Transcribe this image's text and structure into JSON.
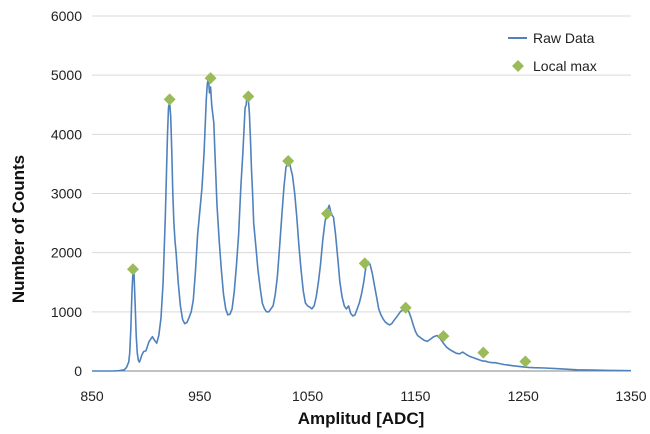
{
  "chart_data": {
    "type": "line",
    "title": "",
    "xlabel": "Amplitud [ADC]",
    "ylabel": "Number of Counts",
    "xlim": [
      850,
      1350
    ],
    "ylim": [
      0,
      6000
    ],
    "x_ticks": [
      850,
      950,
      1050,
      1150,
      1250,
      1350
    ],
    "x_tick_labels": [
      "850",
      "950",
      "1050",
      "1150",
      "1250",
      "1350"
    ],
    "y_ticks": [
      0,
      1000,
      2000,
      3000,
      4000,
      5000,
      6000
    ],
    "y_tick_labels": [
      "0",
      "1000",
      "2000",
      "3000",
      "4000",
      "5000",
      "6000"
    ],
    "grid": "horizontal",
    "legend": {
      "placement": "top-right",
      "entries": [
        {
          "name": "Raw Data",
          "marker": "line"
        },
        {
          "name": "Local max",
          "marker": "diamond"
        }
      ]
    },
    "colors": {
      "raw_data": "#4F81BD",
      "local_max": "#9BBB59",
      "grid": "#d9d9d9",
      "axis": "#868686"
    },
    "series": [
      {
        "name": "Raw Data",
        "style": "line",
        "x": [
          850,
          870,
          875,
          880,
          882,
          884,
          885,
          886,
          887,
          888,
          889,
          890,
          891,
          892,
          893,
          894,
          895,
          896,
          897,
          898,
          900,
          903,
          906,
          908,
          910,
          912,
          914,
          916,
          918,
          920,
          921,
          922,
          923,
          924,
          925,
          926,
          927,
          928,
          930,
          932,
          934,
          936,
          938,
          940,
          942,
          944,
          946,
          948,
          950,
          952,
          954,
          956,
          957,
          958,
          959,
          960,
          961,
          962,
          963,
          964,
          966,
          968,
          970,
          972,
          974,
          976,
          978,
          980,
          982,
          984,
          986,
          988,
          990,
          992,
          993,
          994,
          995,
          996,
          997,
          998,
          999,
          1000,
          1002,
          1004,
          1006,
          1008,
          1010,
          1012,
          1014,
          1016,
          1018,
          1020,
          1022,
          1024,
          1026,
          1028,
          1030,
          1032,
          1033,
          1034,
          1036,
          1038,
          1040,
          1042,
          1044,
          1046,
          1048,
          1050,
          1052,
          1054,
          1056,
          1058,
          1060,
          1062,
          1064,
          1066,
          1068,
          1070,
          1072,
          1074,
          1076,
          1078,
          1080,
          1082,
          1084,
          1086,
          1088,
          1090,
          1092,
          1094,
          1096,
          1098,
          1100,
          1102,
          1104,
          1106,
          1108,
          1110,
          1112,
          1114,
          1116,
          1118,
          1120,
          1122,
          1124,
          1126,
          1128,
          1130,
          1132,
          1134,
          1136,
          1138,
          1140,
          1142,
          1144,
          1146,
          1148,
          1150,
          1152,
          1155,
          1158,
          1161,
          1164,
          1167,
          1170,
          1173,
          1176,
          1179,
          1182,
          1185,
          1188,
          1191,
          1194,
          1197,
          1200,
          1203,
          1206,
          1209,
          1212,
          1215,
          1218,
          1221,
          1224,
          1228,
          1232,
          1236,
          1240,
          1245,
          1250,
          1255,
          1260,
          1270,
          1280,
          1290,
          1300,
          1315,
          1330,
          1350
        ],
        "y": [
          0,
          0,
          5,
          20,
          60,
          150,
          300,
          700,
          1300,
          1700,
          1650,
          1150,
          600,
          300,
          180,
          150,
          200,
          260,
          300,
          330,
          340,
          500,
          580,
          520,
          470,
          600,
          900,
          1500,
          2600,
          4000,
          4450,
          4550,
          4300,
          3700,
          3000,
          2500,
          2200,
          2000,
          1500,
          1100,
          870,
          800,
          820,
          900,
          1000,
          1200,
          1700,
          2300,
          2700,
          3100,
          3700,
          4600,
          4850,
          4950,
          4700,
          4800,
          4500,
          4350,
          4200,
          3700,
          2800,
          2200,
          1700,
          1300,
          1050,
          950,
          960,
          1050,
          1350,
          1800,
          2300,
          3100,
          3700,
          4450,
          4500,
          4700,
          4600,
          4350,
          3900,
          3400,
          3000,
          2500,
          2100,
          1700,
          1400,
          1150,
          1050,
          1000,
          1000,
          1050,
          1100,
          1300,
          1600,
          2100,
          2600,
          3100,
          3450,
          3500,
          3550,
          3450,
          3300,
          3000,
          2600,
          2100,
          1700,
          1350,
          1150,
          1100,
          1080,
          1050,
          1100,
          1250,
          1500,
          1800,
          2200,
          2500,
          2700,
          2800,
          2650,
          2600,
          2300,
          1900,
          1500,
          1250,
          1100,
          1050,
          1100,
          970,
          930,
          950,
          1050,
          1150,
          1300,
          1500,
          1750,
          1850,
          1800,
          1650,
          1450,
          1250,
          1050,
          950,
          880,
          830,
          800,
          780,
          800,
          850,
          900,
          950,
          1000,
          1030,
          1070,
          1050,
          1000,
          900,
          780,
          670,
          600,
          560,
          520,
          500,
          540,
          580,
          600,
          550,
          470,
          400,
          360,
          330,
          300,
          290,
          320,
          280,
          250,
          230,
          210,
          190,
          170,
          165,
          150,
          140,
          140,
          125,
          110,
          100,
          90,
          80,
          70,
          60,
          55,
          50,
          40,
          30,
          20,
          15,
          10,
          5
        ]
      },
      {
        "name": "Local max",
        "style": "marker",
        "x": [
          888,
          922,
          960,
          995,
          1032,
          1068,
          1103,
          1141,
          1176,
          1213,
          1252
        ],
        "y": [
          1720,
          4590,
          4950,
          4640,
          3550,
          2660,
          1820,
          1070,
          590,
          310,
          160
        ]
      }
    ]
  }
}
